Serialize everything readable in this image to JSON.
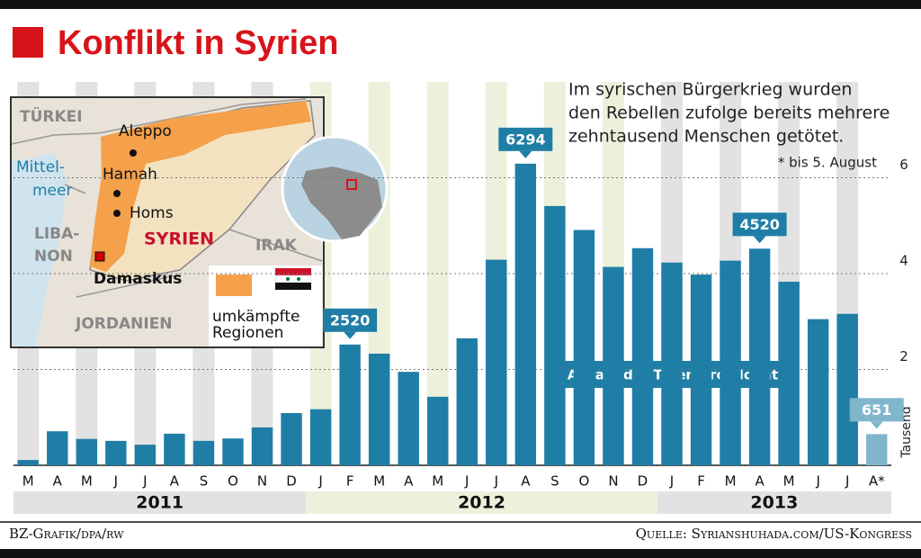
{
  "chart_data": {
    "type": "bar",
    "title": "Konflikt in Syrien",
    "subtitle": [
      "Im syrischen Bürgerkrieg wurden",
      "den Rebellen zufolge bereits mehrere",
      "zehntausend Menschen getötet."
    ],
    "footnote": "* bis 5. August",
    "annotation": "Anzahl der Toten pro Monat",
    "y_label": "Tausend",
    "categories": [
      "M",
      "A",
      "M",
      "J",
      "J",
      "A",
      "S",
      "O",
      "N",
      "D",
      "J",
      "F",
      "M",
      "A",
      "M",
      "J",
      "J",
      "A",
      "S",
      "O",
      "N",
      "D",
      "J",
      "F",
      "M",
      "A",
      "M",
      "J",
      "J",
      "A*"
    ],
    "years": [
      "2011",
      "2012",
      "2013"
    ],
    "values": [
      0.11,
      0.71,
      0.55,
      0.51,
      0.43,
      0.66,
      0.51,
      0.56,
      0.79,
      1.09,
      1.17,
      2.52,
      2.33,
      1.95,
      1.43,
      2.65,
      4.29,
      6.294,
      5.41,
      4.91,
      4.14,
      4.53,
      4.23,
      3.98,
      4.27,
      4.52,
      3.83,
      3.05,
      3.16,
      0.651
    ],
    "value_labels": [
      null,
      null,
      null,
      null,
      null,
      null,
      null,
      null,
      null,
      null,
      null,
      "2520",
      null,
      null,
      null,
      null,
      null,
      "6294",
      null,
      null,
      null,
      null,
      null,
      null,
      null,
      "4520",
      null,
      null,
      null,
      "651"
    ],
    "colors": [
      "#1f7ea6",
      "#1f7ea6",
      "#1f7ea6",
      "#1f7ea6",
      "#1f7ea6",
      "#1f7ea6",
      "#1f7ea6",
      "#1f7ea6",
      "#1f7ea6",
      "#1f7ea6",
      "#1f7ea6",
      "#1f7ea6",
      "#1f7ea6",
      "#1f7ea6",
      "#1f7ea6",
      "#1f7ea6",
      "#1f7ea6",
      "#1f7ea6",
      "#1f7ea6",
      "#1f7ea6",
      "#1f7ea6",
      "#1f7ea6",
      "#1f7ea6",
      "#1f7ea6",
      "#1f7ea6",
      "#1f7ea6",
      "#1f7ea6",
      "#1f7ea6",
      "#1f7ea6",
      "#80b6cc"
    ],
    "ylim": [
      0,
      8
    ],
    "yticks": [
      2,
      4,
      6
    ],
    "grid": true,
    "source_left": "BZ-Grafik/dpa/rw",
    "source_right": "Quelle: Syrianshuhada.com/US-Kongress",
    "inset": {
      "turkey": "TÜRKEI",
      "sea": [
        "Mittel-",
        "meer"
      ],
      "lebanon": [
        "LIBA-",
        "NON"
      ],
      "syria": "SYRIEN",
      "iraq": "IRAK",
      "jordan": "JORDANIEN",
      "cities": [
        "Aleppo",
        "Hamah",
        "Homs"
      ],
      "capital": "Damaskus",
      "legend": [
        "umkämpfte",
        "Regionen"
      ]
    }
  }
}
